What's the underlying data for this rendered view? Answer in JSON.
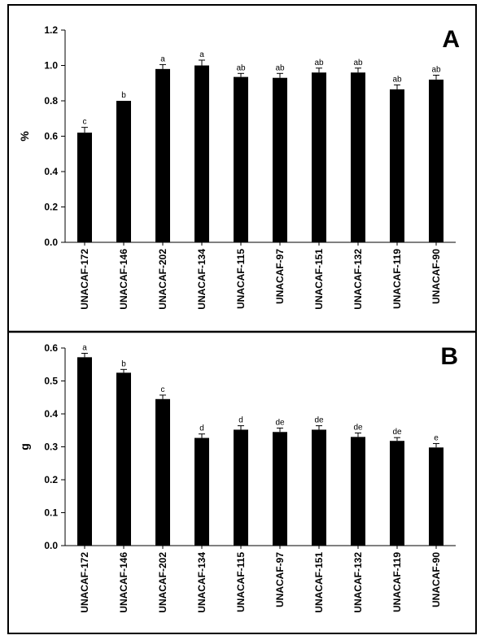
{
  "chart_data": [
    {
      "type": "bar",
      "panel_label": "A",
      "ylabel": "%",
      "ylim": [
        0,
        1.2
      ],
      "yticks": [
        "0.0",
        "0.2",
        "0.4",
        "0.6",
        "0.8",
        "1.0",
        "1.2"
      ],
      "categories": [
        "UNACAF-172",
        "UNACAF-146",
        "UNACAF-202",
        "UNACAF-134",
        "UNACAF-115",
        "UNACAF-97",
        "UNACAF-151",
        "UNACAF-132",
        "UNACAF-119",
        "UNACAF-90"
      ],
      "values": [
        0.62,
        0.8,
        0.98,
        1.0,
        0.935,
        0.93,
        0.96,
        0.96,
        0.865,
        0.92
      ],
      "errors": [
        0.03,
        0.0,
        0.025,
        0.03,
        0.02,
        0.025,
        0.025,
        0.025,
        0.025,
        0.025
      ],
      "significance": [
        "c",
        "b",
        "a",
        "a",
        "ab",
        "ab",
        "ab",
        "ab",
        "ab",
        "ab"
      ],
      "bar_color": "#000000"
    },
    {
      "type": "bar",
      "panel_label": "B",
      "ylabel": "g",
      "ylim": [
        0,
        0.6
      ],
      "yticks": [
        "0.0",
        "0.1",
        "0.2",
        "0.3",
        "0.4",
        "0.5",
        "0.6"
      ],
      "categories": [
        "UNACAF-172",
        "UNACAF-146",
        "UNACAF-202",
        "UNACAF-134",
        "UNACAF-115",
        "UNACAF-97",
        "UNACAF-151",
        "UNACAF-132",
        "UNACAF-119",
        "UNACAF-90"
      ],
      "values": [
        0.572,
        0.525,
        0.445,
        0.327,
        0.352,
        0.345,
        0.352,
        0.33,
        0.318,
        0.298
      ],
      "errors": [
        0.012,
        0.01,
        0.012,
        0.012,
        0.012,
        0.012,
        0.012,
        0.012,
        0.01,
        0.012
      ],
      "significance": [
        "a",
        "b",
        "c",
        "d",
        "d",
        "de",
        "de",
        "de",
        "de",
        "e"
      ],
      "bar_color": "#000000"
    }
  ]
}
